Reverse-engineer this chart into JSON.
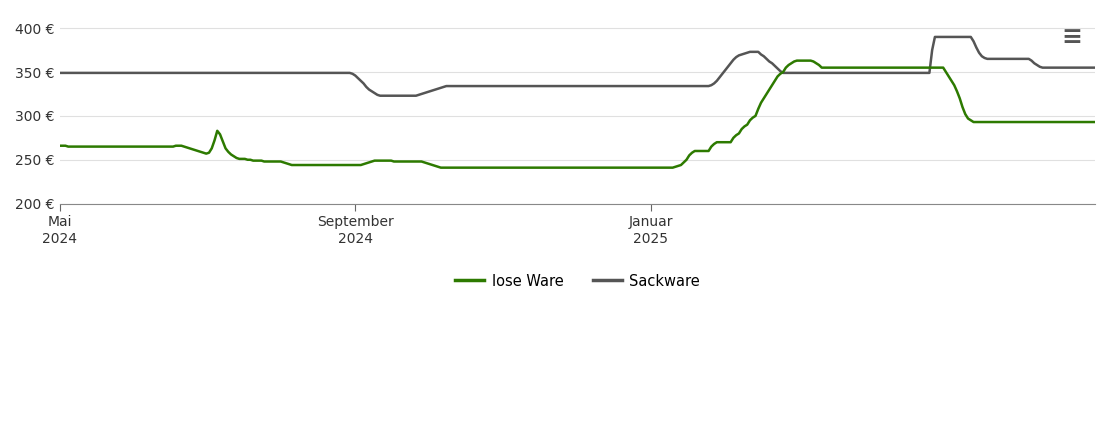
{
  "background_color": "#ffffff",
  "grid_color": "#e0e0e0",
  "loose_ware_color": "#2d7a00",
  "sack_ware_color": "#555555",
  "legend_labels": [
    "lose Ware",
    "Sackware"
  ],
  "ylim": [
    200,
    415
  ],
  "yticks": [
    200,
    250,
    300,
    350,
    400
  ],
  "ytick_labels": [
    "200 €",
    "250 €",
    "300 €",
    "350 €",
    "400 €"
  ],
  "loose_ware": [
    266,
    266,
    266,
    265,
    265,
    265,
    265,
    265,
    265,
    265,
    265,
    265,
    265,
    265,
    265,
    265,
    265,
    265,
    265,
    265,
    265,
    265,
    265,
    265,
    265,
    265,
    265,
    265,
    265,
    265,
    265,
    265,
    265,
    265,
    265,
    265,
    265,
    265,
    265,
    265,
    265,
    265,
    266,
    266,
    266,
    265,
    264,
    263,
    262,
    261,
    260,
    259,
    258,
    257,
    258,
    263,
    272,
    283,
    279,
    271,
    263,
    259,
    256,
    254,
    252,
    251,
    251,
    251,
    250,
    250,
    249,
    249,
    249,
    249,
    248,
    248,
    248,
    248,
    248,
    248,
    248,
    247,
    246,
    245,
    244,
    244,
    244,
    244,
    244,
    244,
    244,
    244,
    244,
    244,
    244,
    244,
    244,
    244,
    244,
    244,
    244,
    244,
    244,
    244,
    244,
    244,
    244,
    244,
    244,
    244,
    245,
    246,
    247,
    248,
    249,
    249,
    249,
    249,
    249,
    249,
    249,
    248,
    248,
    248,
    248,
    248,
    248,
    248,
    248,
    248,
    248,
    248,
    247,
    246,
    245,
    244,
    243,
    242,
    241,
    241,
    241,
    241,
    241,
    241,
    241,
    241,
    241,
    241,
    241,
    241,
    241,
    241,
    241,
    241,
    241,
    241,
    241,
    241,
    241,
    241,
    241,
    241,
    241,
    241,
    241,
    241,
    241,
    241,
    241,
    241,
    241,
    241,
    241,
    241,
    241,
    241,
    241,
    241,
    241,
    241,
    241,
    241,
    241,
    241,
    241,
    241,
    241,
    241,
    241,
    241,
    241,
    241,
    241,
    241,
    241,
    241,
    241,
    241,
    241,
    241,
    241,
    241,
    241,
    241,
    241,
    241,
    241,
    241,
    241,
    241,
    241,
    241,
    241,
    241,
    241,
    241,
    241,
    241,
    241,
    241,
    241,
    241,
    241,
    242,
    243,
    244,
    247,
    250,
    255,
    258,
    260,
    260,
    260,
    260,
    260,
    260,
    265,
    268,
    270,
    270,
    270,
    270,
    270,
    270,
    275,
    278,
    280,
    285,
    288,
    290,
    295,
    298,
    300,
    308,
    315,
    320,
    325,
    330,
    335,
    340,
    345,
    348,
    350,
    355,
    358,
    360,
    362,
    363,
    363,
    363,
    363,
    363,
    363,
    362,
    360,
    358,
    355,
    355,
    355,
    355,
    355,
    355,
    355,
    355,
    355,
    355,
    355,
    355,
    355,
    355,
    355,
    355,
    355,
    355,
    355,
    355,
    355,
    355,
    355,
    355,
    355,
    355,
    355,
    355,
    355,
    355,
    355,
    355,
    355,
    355,
    355,
    355,
    355,
    355,
    355,
    355,
    355,
    355,
    355,
    355,
    355,
    350,
    345,
    340,
    335,
    328,
    320,
    310,
    302,
    297,
    295,
    293,
    293,
    293,
    293,
    293,
    293,
    293,
    293,
    293,
    293,
    293,
    293,
    293,
    293,
    293,
    293,
    293,
    293,
    293,
    293,
    293,
    293,
    293,
    293,
    293,
    293,
    293,
    293,
    293,
    293,
    293,
    293,
    293,
    293,
    293,
    293,
    293,
    293,
    293,
    293,
    293,
    293,
    293,
    293,
    293
  ],
  "sack_ware": [
    349,
    349,
    349,
    349,
    349,
    349,
    349,
    349,
    349,
    349,
    349,
    349,
    349,
    349,
    349,
    349,
    349,
    349,
    349,
    349,
    349,
    349,
    349,
    349,
    349,
    349,
    349,
    349,
    349,
    349,
    349,
    349,
    349,
    349,
    349,
    349,
    349,
    349,
    349,
    349,
    349,
    349,
    349,
    349,
    349,
    349,
    349,
    349,
    349,
    349,
    349,
    349,
    349,
    349,
    349,
    349,
    349,
    349,
    349,
    349,
    349,
    349,
    349,
    349,
    349,
    349,
    349,
    349,
    349,
    349,
    349,
    349,
    349,
    349,
    349,
    349,
    349,
    349,
    349,
    349,
    349,
    349,
    349,
    349,
    349,
    349,
    349,
    349,
    349,
    349,
    349,
    349,
    349,
    349,
    349,
    349,
    349,
    349,
    349,
    349,
    349,
    349,
    349,
    349,
    349,
    349,
    348,
    346,
    343,
    340,
    337,
    333,
    330,
    328,
    326,
    324,
    323,
    323,
    323,
    323,
    323,
    323,
    323,
    323,
    323,
    323,
    323,
    323,
    323,
    323,
    324,
    325,
    326,
    327,
    328,
    329,
    330,
    331,
    332,
    333,
    334,
    334,
    334,
    334,
    334,
    334,
    334,
    334,
    334,
    334,
    334,
    334,
    334,
    334,
    334,
    334,
    334,
    334,
    334,
    334,
    334,
    334,
    334,
    334,
    334,
    334,
    334,
    334,
    334,
    334,
    334,
    334,
    334,
    334,
    334,
    334,
    334,
    334,
    334,
    334,
    334,
    334,
    334,
    334,
    334,
    334,
    334,
    334,
    334,
    334,
    334,
    334,
    334,
    334,
    334,
    334,
    334,
    334,
    334,
    334,
    334,
    334,
    334,
    334,
    334,
    334,
    334,
    334,
    334,
    334,
    334,
    334,
    334,
    334,
    334,
    334,
    334,
    334,
    334,
    334,
    334,
    334,
    334,
    334,
    334,
    334,
    334,
    334,
    334,
    334,
    334,
    334,
    334,
    334,
    334,
    334,
    335,
    337,
    340,
    344,
    348,
    352,
    356,
    360,
    364,
    367,
    369,
    370,
    371,
    372,
    373,
    373,
    373,
    373,
    370,
    368,
    365,
    362,
    360,
    357,
    354,
    351,
    349,
    349,
    349,
    349,
    349,
    349,
    349,
    349,
    349,
    349,
    349,
    349,
    349,
    349,
    349,
    349,
    349,
    349,
    349,
    349,
    349,
    349,
    349,
    349,
    349,
    349,
    349,
    349,
    349,
    349,
    349,
    349,
    349,
    349,
    349,
    349,
    349,
    349,
    349,
    349,
    349,
    349,
    349,
    349,
    349,
    349,
    349,
    349,
    349,
    349,
    349,
    349,
    349,
    349,
    375,
    390,
    390,
    390,
    390,
    390,
    390,
    390,
    390,
    390,
    390,
    390,
    390,
    390,
    390,
    385,
    378,
    372,
    368,
    366,
    365,
    365,
    365,
    365,
    365,
    365,
    365,
    365,
    365,
    365,
    365,
    365,
    365,
    365,
    365,
    365,
    363,
    360,
    358,
    356,
    355,
    355,
    355,
    355,
    355,
    355,
    355,
    355,
    355,
    355,
    355,
    355,
    355,
    355,
    355,
    355,
    355,
    355,
    355,
    355
  ]
}
